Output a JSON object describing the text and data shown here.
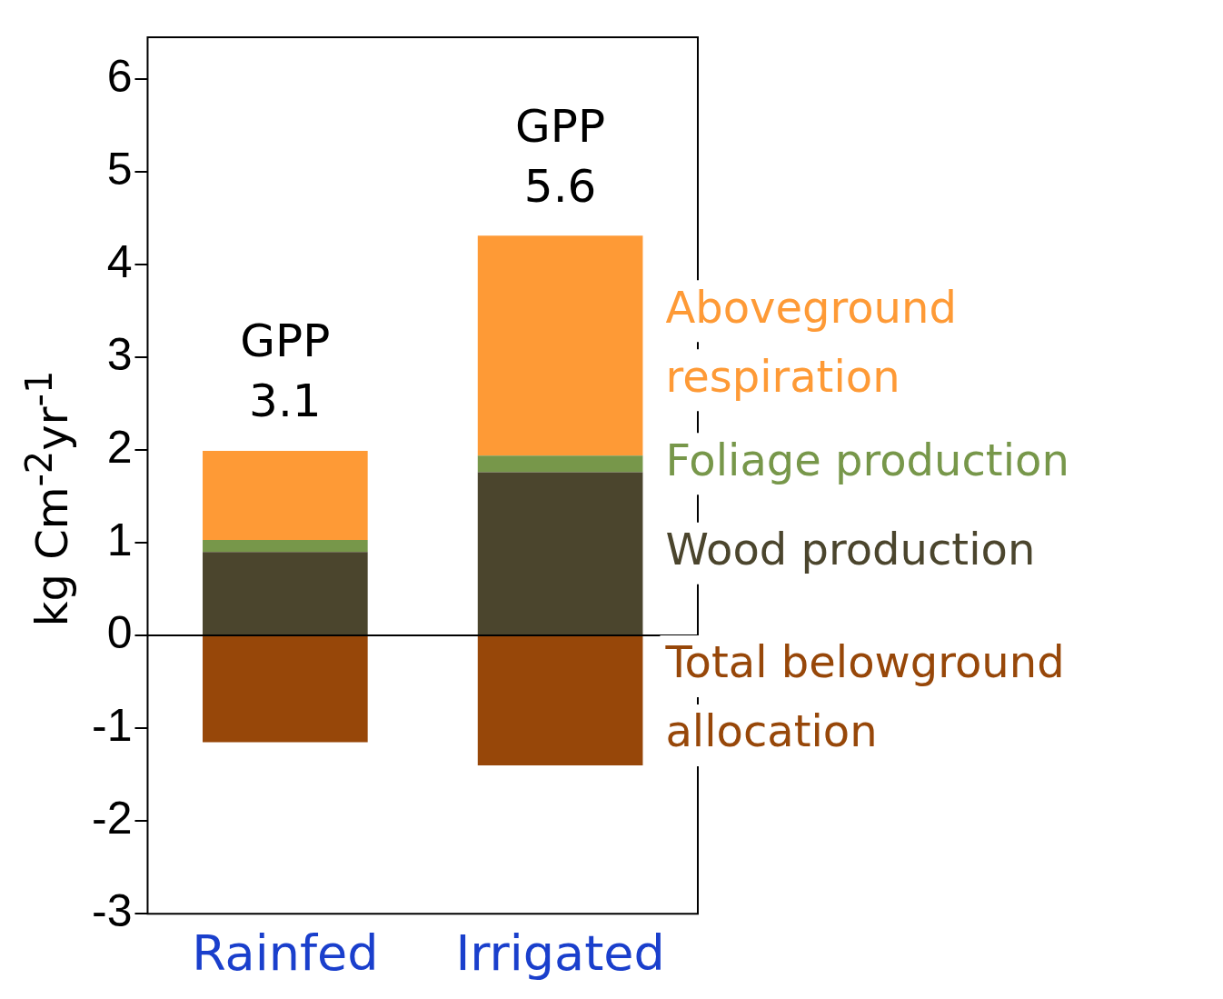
{
  "chart_data": {
    "type": "bar",
    "stacked": true,
    "ylabel": "kg Cm$^{-2}$yr$^{-1}$",
    "categories": [
      "Rainfed",
      "Irrigated"
    ],
    "series": [
      {
        "name": "Total belowground allocation",
        "color": "#974709",
        "values": [
          -1.15,
          -1.4
        ]
      },
      {
        "name": "Wood production",
        "color": "#4b452d",
        "values": [
          0.9,
          1.76
        ]
      },
      {
        "name": "Foliage production",
        "color": "#77974a",
        "values": [
          0.13,
          0.18
        ]
      },
      {
        "name": "Aboveground respiration",
        "color": "#fe9a36",
        "values": [
          0.96,
          2.37
        ]
      }
    ],
    "ylim": [
      -3,
      6.45
    ],
    "yticks": [
      -3,
      -2,
      -1,
      0,
      1,
      2,
      3,
      4,
      5,
      6
    ],
    "grid": false,
    "ref_lines": [
      {
        "axis": "y",
        "value": 0,
        "color": "#000000"
      }
    ],
    "annotations": [
      {
        "text": "GPP\n3.1",
        "x": "Rainfed",
        "y": 2
      },
      {
        "text": "GPP\n5.6",
        "x": "Irrigated",
        "y": 4.31
      }
    ]
  }
}
